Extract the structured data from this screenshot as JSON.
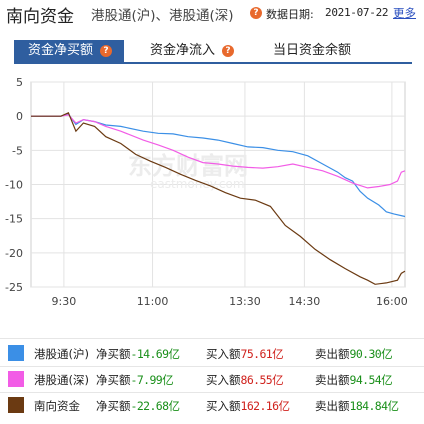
{
  "header": {
    "title": "南向资金",
    "subtitle": "港股通(沪)、港股通(深)",
    "date_label": "数据日期:",
    "date_value": "2021-07-22",
    "more_link": "更多",
    "help_icon": "question-icon"
  },
  "tabs": [
    {
      "label": "资金净买额",
      "active": true
    },
    {
      "label": "资金净流入",
      "active": false
    },
    {
      "label": "当日资金余额",
      "active": false
    }
  ],
  "watermark": {
    "text": "东方财富网",
    "subtext": "eastmoney.com"
  },
  "chart_data": {
    "type": "line",
    "x_ticks": [
      "9:30",
      "11:00",
      "13:30",
      "14:30",
      "16:00"
    ],
    "y_ticks": [
      "5",
      "0",
      "-5",
      "-10",
      "-15",
      "-20",
      "-25"
    ],
    "ylim": [
      -25,
      5
    ],
    "grid": true,
    "series": [
      {
        "name": "港股通(沪)",
        "color": "#3b8fe6",
        "values": [
          [
            0,
            0
          ],
          [
            8,
            0
          ],
          [
            10,
            0.3
          ],
          [
            12,
            -1.2
          ],
          [
            14,
            -0.5
          ],
          [
            17,
            -0.8
          ],
          [
            20,
            -1.3
          ],
          [
            24,
            -1.5
          ],
          [
            30,
            -2.2
          ],
          [
            34,
            -2.5
          ],
          [
            38,
            -2.6
          ],
          [
            42,
            -3.0
          ],
          [
            46,
            -3.2
          ],
          [
            50,
            -3.5
          ],
          [
            54,
            -4.0
          ],
          [
            58,
            -4.5
          ],
          [
            62,
            -4.6
          ],
          [
            66,
            -5.0
          ],
          [
            70,
            -5.2
          ],
          [
            74,
            -5.8
          ],
          [
            78,
            -7.0
          ],
          [
            82,
            -8.2
          ],
          [
            84,
            -9.0
          ],
          [
            86,
            -9.5
          ],
          [
            88,
            -11.0
          ],
          [
            90,
            -12.0
          ],
          [
            93,
            -13.0
          ],
          [
            95,
            -14.0
          ],
          [
            97,
            -14.3
          ],
          [
            100,
            -14.69
          ]
        ]
      },
      {
        "name": "港股通(深)",
        "color": "#f25ce6",
        "values": [
          [
            0,
            0
          ],
          [
            8,
            0
          ],
          [
            10,
            0.2
          ],
          [
            12,
            -1.0
          ],
          [
            14,
            -0.5
          ],
          [
            17,
            -0.8
          ],
          [
            20,
            -1.5
          ],
          [
            24,
            -2.2
          ],
          [
            30,
            -3.5
          ],
          [
            34,
            -4.2
          ],
          [
            38,
            -5.0
          ],
          [
            42,
            -6.0
          ],
          [
            46,
            -6.8
          ],
          [
            50,
            -7.0
          ],
          [
            54,
            -7.3
          ],
          [
            58,
            -7.5
          ],
          [
            62,
            -7.6
          ],
          [
            66,
            -7.4
          ],
          [
            70,
            -7.0
          ],
          [
            74,
            -7.5
          ],
          [
            78,
            -8.0
          ],
          [
            82,
            -8.8
          ],
          [
            86,
            -9.8
          ],
          [
            90,
            -10.5
          ],
          [
            93,
            -10.3
          ],
          [
            96,
            -10.0
          ],
          [
            98,
            -9.5
          ],
          [
            99,
            -8.2
          ],
          [
            100,
            -7.99
          ]
        ]
      },
      {
        "name": "南向资金",
        "color": "#6b3a12",
        "values": [
          [
            0,
            0
          ],
          [
            8,
            0
          ],
          [
            10,
            0.5
          ],
          [
            12,
            -2.2
          ],
          [
            14,
            -1.0
          ],
          [
            17,
            -1.5
          ],
          [
            20,
            -3.0
          ],
          [
            24,
            -4.0
          ],
          [
            28,
            -5.6
          ],
          [
            32,
            -6.6
          ],
          [
            36,
            -7.5
          ],
          [
            40,
            -8.5
          ],
          [
            44,
            -9.4
          ],
          [
            48,
            -10.2
          ],
          [
            52,
            -11.2
          ],
          [
            56,
            -12.0
          ],
          [
            60,
            -12.3
          ],
          [
            64,
            -13.2
          ],
          [
            68,
            -16.0
          ],
          [
            72,
            -17.6
          ],
          [
            76,
            -19.5
          ],
          [
            80,
            -21.0
          ],
          [
            84,
            -22.3
          ],
          [
            88,
            -23.5
          ],
          [
            90,
            -24.0
          ],
          [
            92,
            -24.6
          ],
          [
            95,
            -24.4
          ],
          [
            98,
            -24.0
          ],
          [
            99,
            -23.0
          ],
          [
            100,
            -22.68
          ]
        ]
      }
    ]
  },
  "legend": [
    {
      "name": "港股通(沪)",
      "color": "#3b8fe6",
      "net_label": "净买额",
      "net_value": "-14.69亿",
      "buy_label": "买入额",
      "buy_value": "75.61亿",
      "sell_label": "卖出额",
      "sell_value": "90.30亿"
    },
    {
      "name": "港股通(深)",
      "color": "#f25ce6",
      "net_label": "净买额",
      "net_value": "-7.99亿",
      "buy_label": "买入额",
      "buy_value": "86.55亿",
      "sell_label": "卖出额",
      "sell_value": "94.54亿"
    },
    {
      "name": "南向资金",
      "color": "#6b3a12",
      "net_label": "净买额",
      "net_value": "-22.68亿",
      "buy_label": "买入额",
      "buy_value": "162.16亿",
      "sell_label": "卖出额",
      "sell_value": "184.84亿"
    }
  ]
}
